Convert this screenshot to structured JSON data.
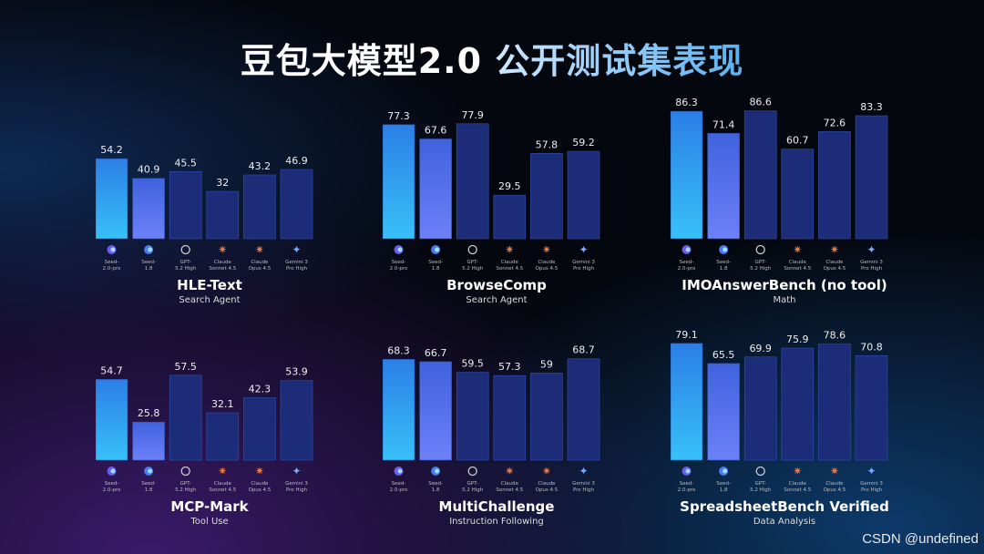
{
  "title": {
    "part1": "豆包大模型2.0 ",
    "part2": "公开测试集表现"
  },
  "watermark": "CSDN @undefined",
  "models": [
    {
      "line1": "Seed-",
      "line2": "2.0-pro",
      "icon": "seed-icon"
    },
    {
      "line1": "Seed-",
      "line2": "1.8",
      "icon": "seed-icon"
    },
    {
      "line1": "GPT-",
      "line2": "5.2 High",
      "icon": "openai-icon"
    },
    {
      "line1": "Claude",
      "line2": "Sonnet 4.5",
      "icon": "claude-icon"
    },
    {
      "line1": "Claude",
      "line2": "Opus 4.5",
      "icon": "claude-icon"
    },
    {
      "line1": "Gemini 3",
      "line2": "Pro High",
      "icon": "gemini-icon"
    }
  ],
  "colors": {
    "seed_pro_top": "#2b7fe6",
    "seed_pro_bottom": "#38c0f8",
    "seed_18_top": "#3f63dd",
    "seed_18_bottom": "#6d80f8",
    "others": "#1d2c78",
    "claude": "#e0784a",
    "gemini": "#7aa8ff"
  },
  "chart_data": [
    {
      "type": "bar",
      "title": "HLE-Text",
      "subtitle": "Search Agent",
      "categories": [
        "Seed-2.0-pro",
        "Seed-1.8",
        "GPT-5.2 High",
        "Claude Sonnet 4.5",
        "Claude Opus 4.5",
        "Gemini 3 Pro High"
      ],
      "values": [
        54.2,
        40.9,
        45.5,
        32,
        43.2,
        46.9
      ],
      "labels": [
        "54.2",
        "40.9",
        "45.5",
        "32",
        "43.2",
        "46.9"
      ]
    },
    {
      "type": "bar",
      "title": "BrowseComp",
      "subtitle": "Search Agent",
      "categories": [
        "Seed-2.0-pro",
        "Seed-1.8",
        "GPT-5.2 High",
        "Claude Sonnet 4.5",
        "Claude Opus 4.5",
        "Gemini 3 Pro High"
      ],
      "values": [
        77.3,
        67.6,
        77.9,
        29.5,
        57.8,
        59.2
      ],
      "labels": [
        "77.3",
        "67.6",
        "77.9",
        "29.5",
        "57.8",
        "59.2"
      ]
    },
    {
      "type": "bar",
      "title": "IMOAnswerBench (no tool)",
      "subtitle": "Math",
      "categories": [
        "Seed-2.0-pro",
        "Seed-1.8",
        "GPT-5.2 High",
        "Claude Sonnet 4.5",
        "Claude Opus 4.5",
        "Gemini 3 Pro High"
      ],
      "values": [
        86.3,
        71.4,
        86.6,
        60.7,
        72.6,
        83.3
      ],
      "labels": [
        "86.3",
        "71.4",
        "86.6",
        "60.7",
        "72.6",
        "83.3"
      ]
    },
    {
      "type": "bar",
      "title": "MCP-Mark",
      "subtitle": "Tool Use",
      "categories": [
        "Seed-2.0-pro",
        "Seed-1.8",
        "GPT-5.2 High",
        "Claude Sonnet 4.5",
        "Claude Opus 4.5",
        "Gemini 3 Pro High"
      ],
      "values": [
        54.7,
        25.8,
        57.5,
        32.1,
        42.3,
        53.9
      ],
      "labels": [
        "54.7",
        "25.8",
        "57.5",
        "32.1",
        "42.3",
        "53.9"
      ]
    },
    {
      "type": "bar",
      "title": "MultiChallenge",
      "subtitle": "Instruction Following",
      "categories": [
        "Seed-2.0-pro",
        "Seed-1.8",
        "GPT-5.2 High",
        "Claude Sonnet 4.5",
        "Claude Opus 4.5",
        "Gemini 3 Pro High"
      ],
      "values": [
        68.3,
        66.7,
        59.5,
        57.3,
        59,
        68.7
      ],
      "labels": [
        "68.3",
        "66.7",
        "59.5",
        "57.3",
        "59",
        "68.7"
      ]
    },
    {
      "type": "bar",
      "title": "SpreadsheetBench Verified",
      "subtitle": "Data Analysis",
      "categories": [
        "Seed-2.0-pro",
        "Seed-1.8",
        "GPT-5.2 High",
        "Claude Sonnet 4.5",
        "Claude Opus 4.5",
        "Gemini 3 Pro High"
      ],
      "values": [
        79.1,
        65.5,
        69.9,
        75.9,
        78.6,
        70.8
      ],
      "labels": [
        "79.1",
        "65.5",
        "69.9",
        "75.9",
        "78.6",
        "70.8"
      ]
    }
  ]
}
